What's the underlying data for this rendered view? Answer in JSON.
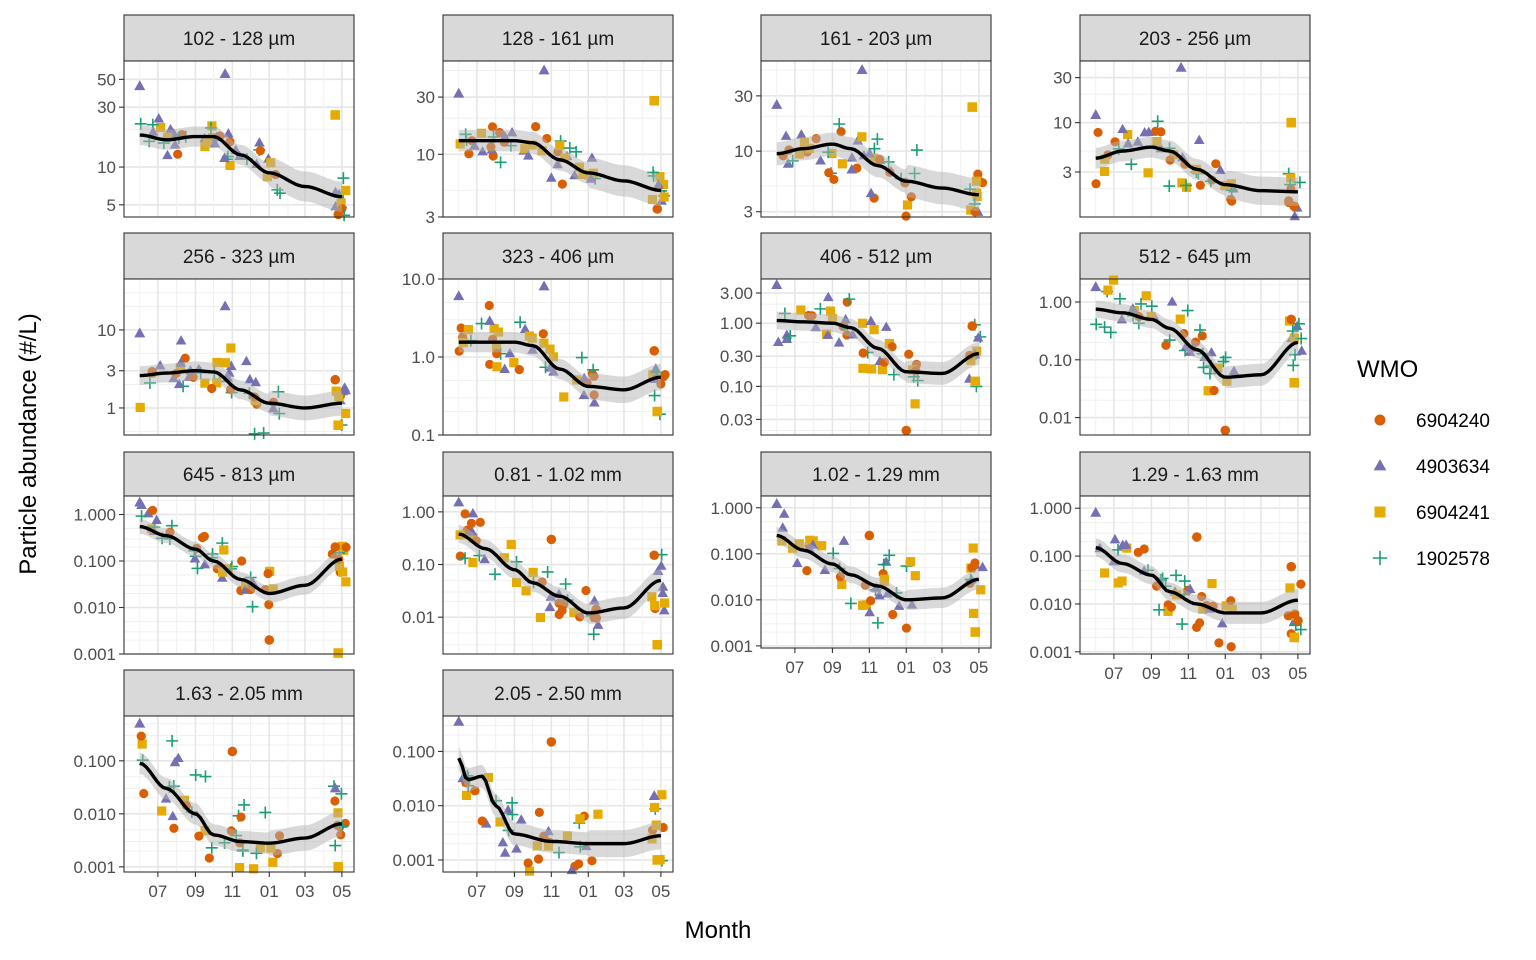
{
  "chart_data": {
    "type": "scatter",
    "xlabel": "Month",
    "ylabel": "Particle abundance (#/L)",
    "y_scale": "log10",
    "grid": true,
    "legend": {
      "title": "WMO",
      "position": "right",
      "entries": [
        {
          "name": "6904240",
          "color": "#D95F02",
          "shape": "circle"
        },
        {
          "name": "4903634",
          "color": "#7570B3",
          "shape": "triangle"
        },
        {
          "name": "6904241",
          "color": "#E6AB02",
          "shape": "square"
        },
        {
          "name": "1902578",
          "color": "#1B9E77",
          "shape": "plus"
        }
      ]
    },
    "x_tick_labels": [
      "07",
      "09",
      "11",
      "01",
      "03",
      "05"
    ],
    "x_tick_dates": [
      "2021-07-01",
      "2021-09-01",
      "2021-11-01",
      "2022-01-01",
      "2022-03-01",
      "2022-05-01"
    ],
    "xlim": [
      "2021-05-06",
      "2022-05-21"
    ],
    "panels": [
      {
        "title": "102 - 128 µm",
        "ylim": [
          4,
          70
        ],
        "yticks": [
          5,
          10,
          30,
          50
        ],
        "ytick_labels": [
          "5",
          "10",
          "30",
          "50"
        ],
        "smooth": [
          [
            "2021-06-01",
            18
          ],
          [
            "2021-07-15",
            16.5
          ],
          [
            "2021-09-01",
            17.5
          ],
          [
            "2021-10-01",
            17.5
          ],
          [
            "2021-11-15",
            12.5
          ],
          [
            "2022-01-01",
            9
          ],
          [
            "2022-03-01",
            7
          ],
          [
            "2022-05-01",
            5.8
          ]
        ],
        "outliers": [
          [
            "2021-10-20",
            55,
            1
          ],
          [
            "2021-06-01",
            44,
            1
          ],
          [
            "2022-04-20",
            26,
            2
          ],
          [
            "2022-04-25",
            4,
            0
          ]
        ]
      },
      {
        "title": "128 - 161 µm",
        "ylim": [
          3,
          60
        ],
        "yticks": [
          3,
          10,
          30
        ],
        "ytick_labels": [
          "3",
          "10",
          "30"
        ],
        "smooth": [
          [
            "2021-06-01",
            13
          ],
          [
            "2021-07-15",
            13
          ],
          [
            "2021-09-01",
            13
          ],
          [
            "2021-10-01",
            12.5
          ],
          [
            "2021-11-15",
            9
          ],
          [
            "2022-01-01",
            7
          ],
          [
            "2022-03-01",
            6
          ],
          [
            "2022-05-01",
            5
          ]
        ],
        "outliers": [
          [
            "2021-10-20",
            50,
            1
          ],
          [
            "2021-06-01",
            32,
            1
          ],
          [
            "2022-04-20",
            28,
            2
          ],
          [
            "2022-04-25",
            3.5,
            0
          ]
        ]
      },
      {
        "title": "161 - 203 µm",
        "ylim": [
          2.7,
          60
        ],
        "yticks": [
          3,
          10,
          30
        ],
        "ytick_labels": [
          "3",
          "10",
          "30"
        ],
        "smooth": [
          [
            "2021-06-01",
            9.5
          ],
          [
            "2021-07-15",
            10.5
          ],
          [
            "2021-09-01",
            11.5
          ],
          [
            "2021-10-01",
            10.5
          ],
          [
            "2021-11-15",
            7.5
          ],
          [
            "2022-01-01",
            5.5
          ],
          [
            "2022-03-01",
            4.8
          ],
          [
            "2022-05-01",
            4.2
          ]
        ],
        "outliers": [
          [
            "2021-10-20",
            50,
            1
          ],
          [
            "2021-06-01",
            25,
            1
          ],
          [
            "2022-04-20",
            24,
            2
          ],
          [
            "2022-04-25",
            3,
            0
          ]
        ]
      },
      {
        "title": "203 - 256 µm",
        "ylim": [
          1,
          45
        ],
        "yticks": [
          3,
          10,
          30
        ],
        "ytick_labels": [
          "3",
          "10",
          "30"
        ],
        "smooth": [
          [
            "2021-06-01",
            4.2
          ],
          [
            "2021-07-15",
            5
          ],
          [
            "2021-09-01",
            5.5
          ],
          [
            "2021-10-01",
            5
          ],
          [
            "2021-11-15",
            3.2
          ],
          [
            "2022-01-01",
            2.2
          ],
          [
            "2022-03-01",
            1.9
          ],
          [
            "2022-05-01",
            1.85
          ]
        ],
        "outliers": [
          [
            "2021-10-20",
            38,
            1
          ],
          [
            "2021-06-01",
            12,
            1
          ],
          [
            "2022-04-20",
            10,
            2
          ],
          [
            "2022-04-25",
            1.3,
            0
          ]
        ]
      },
      {
        "title": "256 - 323 µm",
        "ylim": [
          0.45,
          45
        ],
        "yticks": [
          1,
          3,
          10
        ],
        "ytick_labels": [
          "1",
          "3",
          "10"
        ],
        "smooth": [
          [
            "2021-06-01",
            2.6
          ],
          [
            "2021-07-15",
            2.8
          ],
          [
            "2021-09-01",
            3
          ],
          [
            "2021-10-01",
            2.9
          ],
          [
            "2021-11-15",
            1.7
          ],
          [
            "2022-01-01",
            1.15
          ],
          [
            "2022-03-01",
            1
          ],
          [
            "2022-05-01",
            1.15
          ]
        ],
        "outliers": [
          [
            "2021-10-20",
            20,
            1
          ],
          [
            "2021-06-01",
            9,
            1
          ],
          [
            "2022-04-20",
            2.3,
            0
          ],
          [
            "2022-04-25",
            0.6,
            2
          ]
        ]
      },
      {
        "title": "323 - 406 µm",
        "ylim": [
          0.1,
          10
        ],
        "yticks": [
          0.1,
          1,
          10
        ],
        "ytick_labels": [
          "0.1",
          "1.0",
          "10.0"
        ],
        "smooth": [
          [
            "2021-06-01",
            1.55
          ],
          [
            "2021-07-15",
            1.55
          ],
          [
            "2021-09-01",
            1.55
          ],
          [
            "2021-10-01",
            1.4
          ],
          [
            "2021-11-15",
            0.7
          ],
          [
            "2022-01-01",
            0.42
          ],
          [
            "2022-03-01",
            0.38
          ],
          [
            "2022-05-01",
            0.55
          ]
        ],
        "outliers": [
          [
            "2021-10-20",
            8,
            1
          ],
          [
            "2021-06-01",
            6,
            1
          ],
          [
            "2022-04-20",
            1.2,
            0
          ],
          [
            "2022-04-25",
            0.2,
            2
          ]
        ]
      },
      {
        "title": "406 - 512 µm",
        "ylim": [
          0.017,
          5
        ],
        "yticks": [
          0.03,
          0.1,
          0.3,
          1,
          3
        ],
        "ytick_labels": [
          "0.03",
          "0.10",
          "0.30",
          "1.00",
          "3.00"
        ],
        "smooth": [
          [
            "2021-06-01",
            1.1
          ],
          [
            "2021-07-15",
            1.05
          ],
          [
            "2021-09-01",
            1
          ],
          [
            "2021-10-01",
            0.85
          ],
          [
            "2021-11-15",
            0.4
          ],
          [
            "2022-01-01",
            0.17
          ],
          [
            "2022-03-01",
            0.16
          ],
          [
            "2022-05-01",
            0.33
          ]
        ],
        "outliers": [
          [
            "2021-06-01",
            4,
            1
          ],
          [
            "2022-01-01",
            0.02,
            0
          ],
          [
            "2022-04-20",
            0.9,
            0
          ],
          [
            "2022-04-25",
            0.12,
            2
          ]
        ]
      },
      {
        "title": "512 - 645 µm",
        "ylim": [
          0.005,
          2.5
        ],
        "yticks": [
          0.01,
          0.1,
          1
        ],
        "ytick_labels": [
          "0.01",
          "0.10",
          "1.00"
        ],
        "smooth": [
          [
            "2021-06-01",
            0.75
          ],
          [
            "2021-07-15",
            0.65
          ],
          [
            "2021-09-01",
            0.5
          ],
          [
            "2021-10-01",
            0.35
          ],
          [
            "2021-11-15",
            0.15
          ],
          [
            "2022-01-01",
            0.05
          ],
          [
            "2022-03-01",
            0.055
          ],
          [
            "2022-05-01",
            0.2
          ]
        ],
        "outliers": [
          [
            "2021-06-01",
            1.8,
            1
          ],
          [
            "2022-01-01",
            0.006,
            0
          ],
          [
            "2022-04-20",
            0.5,
            0
          ],
          [
            "2022-04-25",
            0.04,
            2
          ]
        ]
      },
      {
        "title": "645 - 813 µm",
        "ylim": [
          0.001,
          2.5
        ],
        "yticks": [
          0.001,
          0.01,
          0.1,
          1
        ],
        "ytick_labels": [
          "0.001",
          "0.010",
          "0.100",
          "1.000"
        ],
        "smooth": [
          [
            "2021-06-01",
            0.55
          ],
          [
            "2021-07-15",
            0.35
          ],
          [
            "2021-09-01",
            0.18
          ],
          [
            "2021-10-01",
            0.1
          ],
          [
            "2021-11-15",
            0.04
          ],
          [
            "2022-01-01",
            0.02
          ],
          [
            "2022-03-01",
            0.03
          ],
          [
            "2022-05-01",
            0.11
          ]
        ],
        "outliers": [
          [
            "2021-06-01",
            1.8,
            1
          ],
          [
            "2022-01-01",
            0.002,
            0
          ],
          [
            "2022-04-20",
            0.2,
            0
          ],
          [
            "2022-04-25",
            0.001,
            2
          ]
        ]
      },
      {
        "title": "0.81 - 1.02 mm",
        "ylim": [
          0.002,
          2
        ],
        "yticks": [
          0.01,
          0.1,
          1
        ],
        "ytick_labels": [
          "0.01",
          "0.10",
          "1.00"
        ],
        "smooth": [
          [
            "2021-06-01",
            0.38
          ],
          [
            "2021-07-15",
            0.2
          ],
          [
            "2021-09-01",
            0.08
          ],
          [
            "2021-10-01",
            0.045
          ],
          [
            "2021-11-15",
            0.025
          ],
          [
            "2022-01-01",
            0.012
          ],
          [
            "2022-03-01",
            0.015
          ],
          [
            "2022-05-01",
            0.05
          ]
        ],
        "outliers": [
          [
            "2021-06-01",
            1.5,
            1
          ],
          [
            "2021-11-01",
            0.3,
            0
          ],
          [
            "2022-04-20",
            0.15,
            0
          ],
          [
            "2022-04-25",
            0.003,
            2
          ]
        ]
      },
      {
        "title": "1.02 - 1.29 mm",
        "ylim": [
          0.0009,
          1.8
        ],
        "yticks": [
          0.001,
          0.01,
          0.1,
          1
        ],
        "ytick_labels": [
          "0.001",
          "0.010",
          "0.100",
          "1.000"
        ],
        "smooth": [
          [
            "2021-06-01",
            0.25
          ],
          [
            "2021-07-15",
            0.12
          ],
          [
            "2021-09-01",
            0.06
          ],
          [
            "2021-10-01",
            0.035
          ],
          [
            "2021-11-15",
            0.02
          ],
          [
            "2022-01-01",
            0.01
          ],
          [
            "2022-03-01",
            0.011
          ],
          [
            "2022-05-01",
            0.028
          ]
        ],
        "outliers": [
          [
            "2021-06-01",
            1.2,
            1
          ],
          [
            "2021-11-01",
            0.25,
            0
          ],
          [
            "2022-04-20",
            0.05,
            0
          ],
          [
            "2022-04-25",
            0.002,
            2
          ]
        ]
      },
      {
        "title": "1.29 - 1.63 mm",
        "ylim": [
          0.0009,
          1.8
        ],
        "yticks": [
          0.001,
          0.01,
          0.1,
          1
        ],
        "ytick_labels": [
          "0.001",
          "0.010",
          "0.100",
          "1.000"
        ],
        "smooth": [
          [
            "2021-06-01",
            0.15
          ],
          [
            "2021-07-15",
            0.07
          ],
          [
            "2021-09-01",
            0.04
          ],
          [
            "2021-10-01",
            0.018
          ],
          [
            "2021-11-15",
            0.01
          ],
          [
            "2022-01-01",
            0.0065
          ],
          [
            "2022-03-01",
            0.0065
          ],
          [
            "2022-05-01",
            0.012
          ]
        ],
        "outliers": [
          [
            "2021-06-01",
            0.8,
            1
          ],
          [
            "2021-11-15",
            0.25,
            0
          ],
          [
            "2022-04-20",
            0.06,
            0
          ],
          [
            "2022-04-25",
            0.002,
            2
          ]
        ]
      },
      {
        "title": "1.63 - 2.05 mm",
        "ylim": [
          0.0008,
          0.7
        ],
        "yticks": [
          0.001,
          0.01,
          0.1
        ],
        "ytick_labels": [
          "0.001",
          "0.010",
          "0.100"
        ],
        "smooth": [
          [
            "2021-06-01",
            0.09
          ],
          [
            "2021-07-15",
            0.03
          ],
          [
            "2021-09-01",
            0.01
          ],
          [
            "2021-10-01",
            0.004
          ],
          [
            "2021-11-15",
            0.003
          ],
          [
            "2022-01-01",
            0.0028
          ],
          [
            "2022-03-01",
            0.0035
          ],
          [
            "2022-05-01",
            0.0065
          ]
        ],
        "outliers": [
          [
            "2021-06-01",
            0.5,
            1
          ],
          [
            "2021-11-01",
            0.15,
            0
          ],
          [
            "2022-04-20",
            0.03,
            1
          ],
          [
            "2022-04-25",
            0.001,
            2
          ]
        ]
      },
      {
        "title": "2.05 - 2.50 mm",
        "ylim": [
          0.0006,
          0.45
        ],
        "yticks": [
          0.001,
          0.01,
          0.1
        ],
        "ytick_labels": [
          "0.001",
          "0.010",
          "0.100"
        ],
        "smooth": [
          [
            "2021-06-01",
            0.075
          ],
          [
            "2021-06-15",
            0.03
          ],
          [
            "2021-07-10",
            0.035
          ],
          [
            "2021-08-01",
            0.01
          ],
          [
            "2021-09-01",
            0.003
          ],
          [
            "2021-11-01",
            0.0022
          ],
          [
            "2022-01-01",
            0.002
          ],
          [
            "2022-03-01",
            0.002
          ],
          [
            "2022-05-01",
            0.0028
          ]
        ],
        "outliers": [
          [
            "2021-06-01",
            0.35,
            1
          ],
          [
            "2021-11-01",
            0.15,
            0
          ],
          [
            "2022-04-20",
            0.015,
            1
          ],
          [
            "2022-04-25",
            0.001,
            2
          ]
        ]
      }
    ]
  }
}
